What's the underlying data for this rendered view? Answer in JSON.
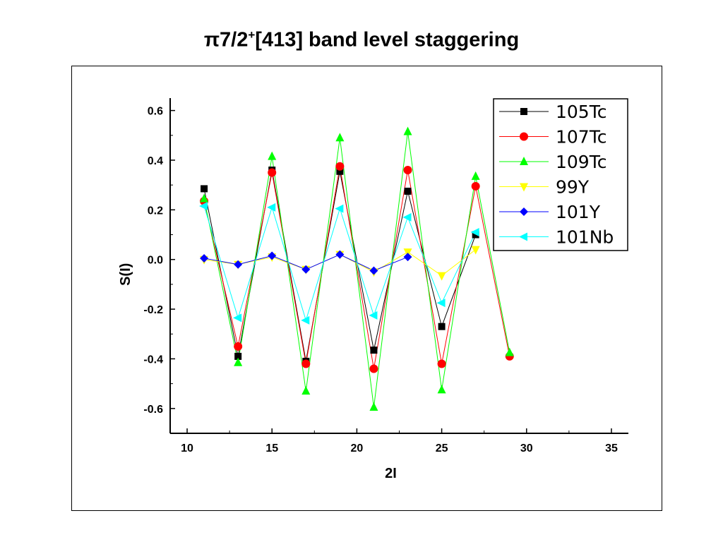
{
  "page": {
    "title_pre": "π7/2",
    "title_sup": "+",
    "title_post": "[413] band level staggering"
  },
  "chart_data": {
    "type": "line",
    "title": "π7/2+[413] band level staggering",
    "xlabel": "2I",
    "ylabel": "S(I)",
    "xlim": [
      9,
      36
    ],
    "ylim": [
      -0.7,
      0.65
    ],
    "xticks": [
      10,
      15,
      20,
      25,
      30,
      35
    ],
    "yticks": [
      0.6,
      0.4,
      0.2,
      0.0,
      -0.2,
      -0.4,
      -0.6
    ],
    "xtick_labels": [
      "10",
      "15",
      "20",
      "25",
      "30",
      "35"
    ],
    "ytick_labels": [
      "0.6",
      "0.4",
      "0.2",
      "0.0",
      "-0.2",
      "-0.4",
      "-0.6"
    ],
    "legend_position": "top-right",
    "grid": false,
    "series": [
      {
        "name": "105Tc",
        "color": "#000000",
        "marker": "square",
        "x": [
          11,
          13,
          15,
          17,
          19,
          21,
          23,
          25,
          27
        ],
        "y": [
          0.285,
          -0.39,
          0.36,
          -0.41,
          0.355,
          -0.365,
          0.275,
          -0.27,
          0.1
        ]
      },
      {
        "name": "107Tc",
        "color": "#ff0000",
        "marker": "circle",
        "x": [
          11,
          13,
          15,
          17,
          19,
          21,
          23,
          25,
          27,
          29
        ],
        "y": [
          0.235,
          -0.35,
          0.35,
          -0.42,
          0.375,
          -0.44,
          0.36,
          -0.42,
          0.295,
          -0.39
        ]
      },
      {
        "name": "109Tc",
        "color": "#00ff00",
        "marker": "triangle-up",
        "x": [
          11,
          13,
          15,
          17,
          19,
          21,
          23,
          25,
          27,
          29
        ],
        "y": [
          0.245,
          -0.415,
          0.415,
          -0.53,
          0.49,
          -0.595,
          0.515,
          -0.525,
          0.335,
          -0.375
        ]
      },
      {
        "name": "99Y",
        "color": "#ffff00",
        "marker": "triangle-down",
        "x": [
          11,
          13,
          15,
          17,
          19,
          21,
          23,
          25,
          27
        ],
        "y": [
          0.0,
          -0.02,
          0.01,
          -0.04,
          0.02,
          -0.05,
          0.03,
          -0.065,
          0.04
        ]
      },
      {
        "name": "101Y",
        "color": "#0000ff",
        "marker": "diamond",
        "x": [
          11,
          13,
          15,
          17,
          19,
          21,
          23
        ],
        "y": [
          0.005,
          -0.02,
          0.015,
          -0.04,
          0.02,
          -0.045,
          0.01
        ]
      },
      {
        "name": "101Nb",
        "color": "#00ffff",
        "marker": "triangle-left",
        "x": [
          11,
          13,
          15,
          17,
          19,
          21,
          23,
          25,
          27
        ],
        "y": [
          0.215,
          -0.235,
          0.21,
          -0.245,
          0.205,
          -0.225,
          0.17,
          -0.175,
          0.11
        ]
      }
    ]
  }
}
